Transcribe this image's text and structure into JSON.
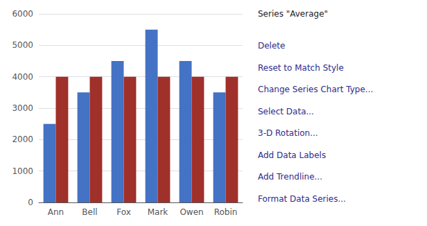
{
  "chart_data": {
    "type": "bar",
    "categories": [
      "Ann",
      "Bell",
      "Fox",
      "Mark",
      "Owen",
      "Robin"
    ],
    "series": [
      {
        "color": "#4472C4",
        "values": [
          2500,
          3500,
          4500,
          5500,
          4500,
          3500
        ]
      },
      {
        "color": "#A0302A",
        "values": [
          4000,
          4000,
          4000,
          4000,
          4000,
          4000
        ]
      }
    ],
    "ylim": [
      0,
      6000
    ],
    "yticks": [
      0,
      1000,
      2000,
      3000,
      4000,
      5000,
      6000
    ],
    "grid": true,
    "annotations": [
      "Series \"Average\"",
      "Delete",
      "Reset to Match Style",
      "Change Series Chart Type...",
      "Select Data...",
      "3-D Rotation...",
      "Add Data Labels",
      "Add Trendline...",
      "Format Data Series..."
    ]
  }
}
